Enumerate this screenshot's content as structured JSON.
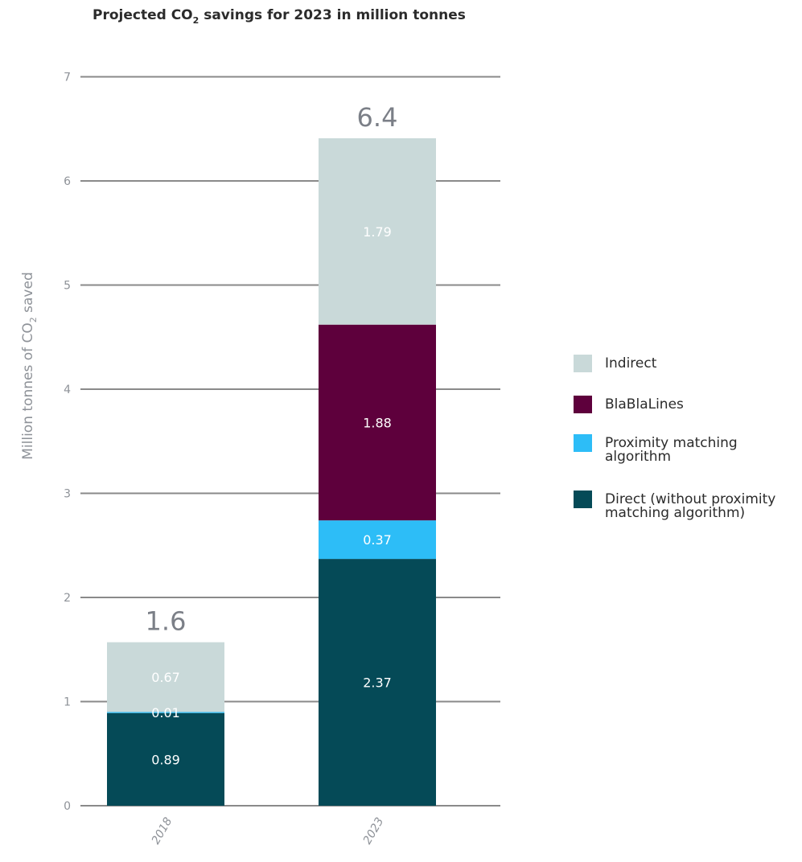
{
  "chart_data": {
    "type": "bar",
    "stacked": true,
    "title_prefix": "Projected CO",
    "title_sub": "2",
    "title_suffix": " savings for 2023 in million tonnes",
    "ylabel_prefix": "Million tonnes of CO",
    "ylabel_sub": "2",
    "ylabel_suffix": " saved",
    "categories": [
      "2018",
      "2023"
    ],
    "totals": [
      "1.6",
      "6.4"
    ],
    "ylim": [
      0,
      7
    ],
    "yticks": [
      0,
      1,
      2,
      3,
      4,
      5,
      6,
      7
    ],
    "grid": true,
    "legend_position": "right",
    "series": [
      {
        "name": "Direct (without proximity matching algorithm)",
        "legend_lines": [
          "Direct (without proximity",
          "matching algorithm)"
        ],
        "color": "#054a57",
        "values": [
          0.89,
          2.37
        ],
        "labels": [
          "0.89",
          "2.37"
        ]
      },
      {
        "name": "Proximity matching algorithm",
        "legend_lines": [
          "Proximity matching",
          "algorithm"
        ],
        "color": "#2dbdf7",
        "values": [
          0.01,
          0.37
        ],
        "labels": [
          "0.01",
          "0.37"
        ]
      },
      {
        "name": "BlaBlaLines",
        "legend_lines": [
          "BlaBlaLines"
        ],
        "color": "#5e003c",
        "values": [
          0,
          1.88
        ],
        "labels": [
          "",
          "1.88"
        ]
      },
      {
        "name": "Indirect",
        "legend_lines": [
          "Indirect"
        ],
        "color": "#c9d9d9",
        "values": [
          0.67,
          1.79
        ],
        "labels": [
          "0.67",
          "1.79"
        ]
      }
    ]
  }
}
